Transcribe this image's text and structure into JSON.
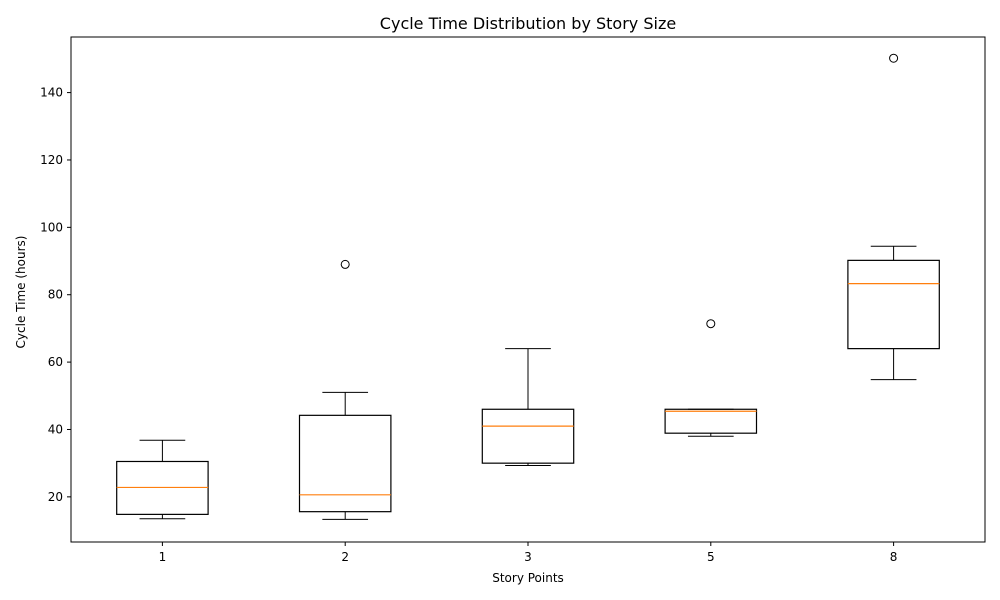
{
  "chart_data": {
    "type": "boxplot",
    "title": "Cycle Time Distribution by Story Size",
    "xlabel": "Story Points",
    "ylabel": "Cycle Time (hours)",
    "categories": [
      "1",
      "2",
      "3",
      "5",
      "8"
    ],
    "ylim": [
      6.6,
      156.5
    ],
    "yticks": [
      20,
      40,
      60,
      80,
      100,
      120,
      140
    ],
    "grid": false,
    "boxes": [
      {
        "label": "1",
        "whisker_low": 13.5,
        "q1": 14.8,
        "median": 22.8,
        "q3": 30.5,
        "whisker_high": 36.8,
        "outliers": []
      },
      {
        "label": "2",
        "whisker_low": 13.3,
        "q1": 15.6,
        "median": 20.6,
        "q3": 44.2,
        "whisker_high": 51.0,
        "outliers": [
          89.0
        ]
      },
      {
        "label": "3",
        "whisker_low": 29.3,
        "q1": 30.0,
        "median": 41.0,
        "q3": 46.0,
        "whisker_high": 64.0,
        "outliers": []
      },
      {
        "label": "5",
        "whisker_low": 38.0,
        "q1": 38.9,
        "median": 45.4,
        "q3": 46.0,
        "whisker_high": 46.0,
        "outliers": [
          71.4
        ]
      },
      {
        "label": "8",
        "whisker_low": 54.8,
        "q1": 64.0,
        "median": 83.3,
        "q3": 90.2,
        "whisker_high": 94.4,
        "outliers": [
          150.2
        ]
      }
    ],
    "colors": {
      "box": "#000000",
      "median": "#ff7f0e",
      "outlier": "#000000",
      "background": "#ffffff"
    }
  }
}
